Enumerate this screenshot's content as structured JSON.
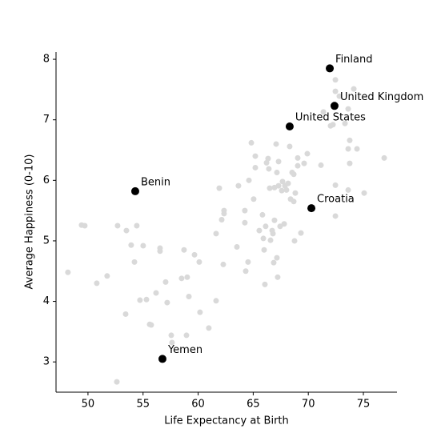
{
  "chart_data": {
    "type": "scatter",
    "x_label": "Life Expectancy at Birth",
    "y_label": "Average Happiness (0-10)",
    "xlim": [
      47.1,
      78.05
    ],
    "ylim": [
      2.5,
      8.12
    ],
    "xticks": [
      50,
      55,
      60,
      65,
      70,
      75
    ],
    "yticks": [
      3,
      4,
      5,
      6,
      7,
      8
    ],
    "series": [
      {
        "color": "#d9d9d9",
        "x": [
          48.18,
          49.42,
          49.71,
          50.8,
          51.74,
          52.62,
          52.69,
          53.42,
          53.49,
          53.92,
          54.22,
          54.43,
          54.72,
          55.01,
          55.31,
          55.6,
          55.74,
          56.18,
          56.54,
          56.54,
          57.05,
          57.19,
          57.56,
          57.63,
          58.5,
          58.72,
          58.94,
          59.01,
          59.16,
          59.67,
          60.1,
          60.17,
          60.97,
          61.63,
          61.63,
          61.92,
          62.14,
          62.35,
          62.35,
          62.28,
          63.52,
          63.66,
          64.24,
          64.24,
          64.32,
          64.53,
          64.61,
          64.83,
          65.04,
          65.19,
          65.19,
          65.55,
          65.84,
          65.92,
          65.99,
          66.06,
          66.13,
          66.21,
          66.35,
          66.42,
          66.5,
          66.57,
          66.72,
          66.79,
          66.86,
          66.93,
          66.93,
          67.08,
          67.15,
          67.15,
          67.22,
          67.3,
          67.3,
          67.44,
          67.59,
          67.66,
          67.81,
          67.88,
          68.02,
          68.17,
          68.31,
          68.39,
          68.53,
          68.68,
          68.68,
          68.75,
          68.82,
          69.04,
          69.04,
          69.33,
          69.62,
          69.91,
          71.15,
          71.37,
          72.02,
          72.24,
          72.46,
          72.46,
          72.46,
          72.46,
          72.82,
          73.33,
          73.62,
          73.62,
          73.76,
          73.76,
          73.62,
          74.13,
          74.42,
          75.07,
          76.89
        ],
        "values": [
          4.48,
          5.26,
          5.25,
          4.3,
          4.42,
          2.67,
          5.25,
          3.79,
          5.17,
          4.93,
          4.65,
          5.25,
          4.02,
          4.92,
          4.03,
          3.62,
          3.61,
          4.14,
          4.88,
          4.83,
          4.32,
          3.98,
          3.44,
          3.32,
          4.38,
          4.85,
          3.44,
          4.4,
          4.08,
          4.77,
          4.65,
          3.82,
          3.56,
          4.01,
          5.12,
          5.87,
          5.35,
          5.5,
          5.45,
          4.61,
          4.9,
          5.91,
          5.5,
          5.3,
          4.5,
          4.65,
          6.0,
          6.62,
          5.69,
          6.4,
          6.21,
          5.17,
          5.43,
          5.04,
          4.85,
          4.28,
          5.24,
          6.29,
          6.36,
          6.19,
          5.87,
          5.01,
          5.17,
          5.12,
          4.64,
          5.88,
          5.34,
          6.6,
          6.13,
          4.72,
          4.4,
          5.91,
          6.31,
          5.24,
          5.83,
          5.98,
          5.28,
          5.91,
          5.84,
          5.95,
          6.56,
          5.69,
          6.13,
          6.1,
          5.65,
          5.0,
          5.79,
          6.37,
          6.24,
          5.13,
          6.28,
          6.44,
          6.25,
          7.13,
          6.9,
          6.92,
          7.66,
          7.47,
          5.92,
          5.41,
          7.39,
          6.94,
          7.18,
          6.52,
          6.66,
          6.28,
          5.84,
          7.51,
          6.52,
          5.79,
          6.37
        ]
      },
      {
        "color": "#000000",
        "labels": [
          "Finland",
          "United Kingdom",
          "United States",
          "Benin",
          "Croatia",
          "Yemen"
        ],
        "x": [
          71.95,
          72.38,
          68.31,
          54.29,
          70.28,
          56.76
        ],
        "values": [
          7.85,
          7.23,
          6.89,
          5.82,
          5.54,
          3.05
        ]
      }
    ]
  }
}
